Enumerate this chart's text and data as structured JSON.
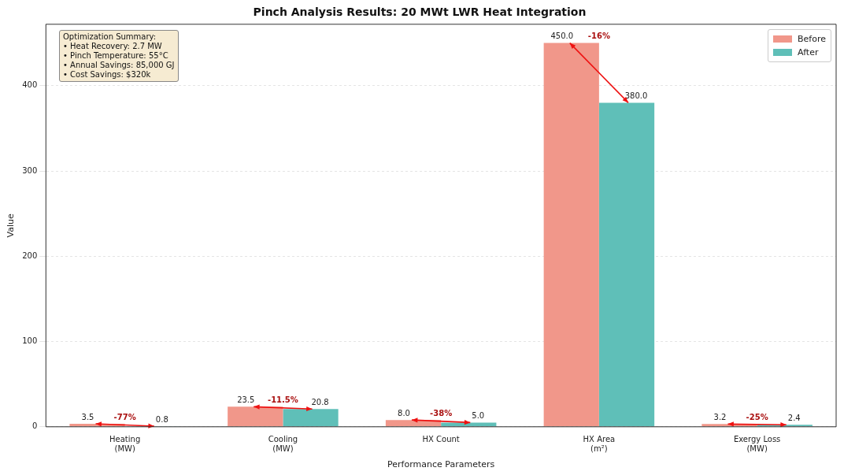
{
  "chart_data": {
    "type": "bar",
    "title": "Pinch Analysis Results: 20 MWt LWR Heat Integration",
    "xlabel": "Performance Parameters",
    "ylabel": "Value",
    "categories": [
      "Heating\n(MW)",
      "Cooling\n(MW)",
      "HX Count",
      "HX Area\n(m²)",
      "Exergy Loss\n(MW)"
    ],
    "series": [
      {
        "name": "Before",
        "color": "#f1978a",
        "values": [
          3.5,
          23.5,
          8.0,
          450.0,
          3.2
        ],
        "value_labels": [
          "3.5",
          "23.5",
          "8.0",
          "450.0",
          "3.2"
        ]
      },
      {
        "name": "After",
        "color": "#5fbfb8",
        "values": [
          0.8,
          20.8,
          5.0,
          380.0,
          2.4
        ],
        "value_labels": [
          "0.8",
          "20.8",
          "5.0",
          "380.0",
          "2.4"
        ]
      }
    ],
    "ylim": [
      0,
      472
    ],
    "yticks": [
      0,
      100,
      200,
      300,
      400
    ],
    "grid": "y",
    "legend": "top right",
    "annotations": [
      "Optimization Summary:\n• Heat Recovery: 2.7 MW\n• Pinch Temperature: 55°C\n• Annual Savings: 85,000 GJ\n• Cost Savings: $320k",
      {
        "text": "-77%",
        "x": "Heating\n(MW)",
        "y": 3.5
      },
      {
        "text": "-11.5%",
        "x": "Cooling\n(MW)",
        "y": 23.5
      },
      {
        "text": "-38%",
        "x": "HX Count",
        "y": 8.0
      },
      {
        "text": "-16%",
        "x": "HX Area\n(m²)",
        "y": 450.0
      },
      {
        "text": "-25%",
        "x": "Exergy Loss\n(MW)",
        "y": 3.2
      }
    ]
  }
}
